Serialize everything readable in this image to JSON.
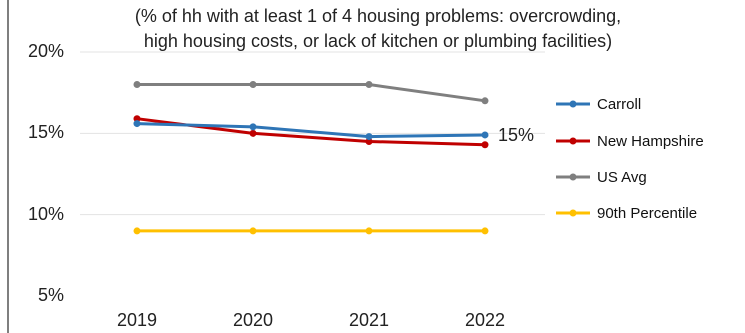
{
  "chart_data": {
    "type": "line",
    "subtitle_lines": [
      "(% of hh with at least 1 of 4 housing problems: overcrowding,",
      "high housing costs, or lack of kitchen or plumbing facilities)"
    ],
    "x": [
      "2019",
      "2020",
      "2021",
      "2022"
    ],
    "y_ticks": [
      "20%",
      "15%",
      "10%",
      "5%"
    ],
    "ylim": [
      5,
      20
    ],
    "grid": "horizontal",
    "legend_position": "right",
    "series": [
      {
        "name": "Carroll",
        "values": [
          15.6,
          15.4,
          14.8,
          14.9
        ],
        "color": "#2E75B6"
      },
      {
        "name": "New Hampshire",
        "values": [
          15.9,
          15.0,
          14.5,
          14.3
        ],
        "color": "#C00000"
      },
      {
        "name": "US Avg",
        "values": [
          18.0,
          18.0,
          18.0,
          17.0
        ],
        "color": "#7F7F7F"
      },
      {
        "name": "90th Percentile",
        "values": [
          9.0,
          9.0,
          9.0,
          9.0
        ],
        "color": "#FFC000"
      }
    ],
    "annotations": [
      {
        "text": "15%",
        "series": "Carroll",
        "index": 3
      }
    ]
  }
}
